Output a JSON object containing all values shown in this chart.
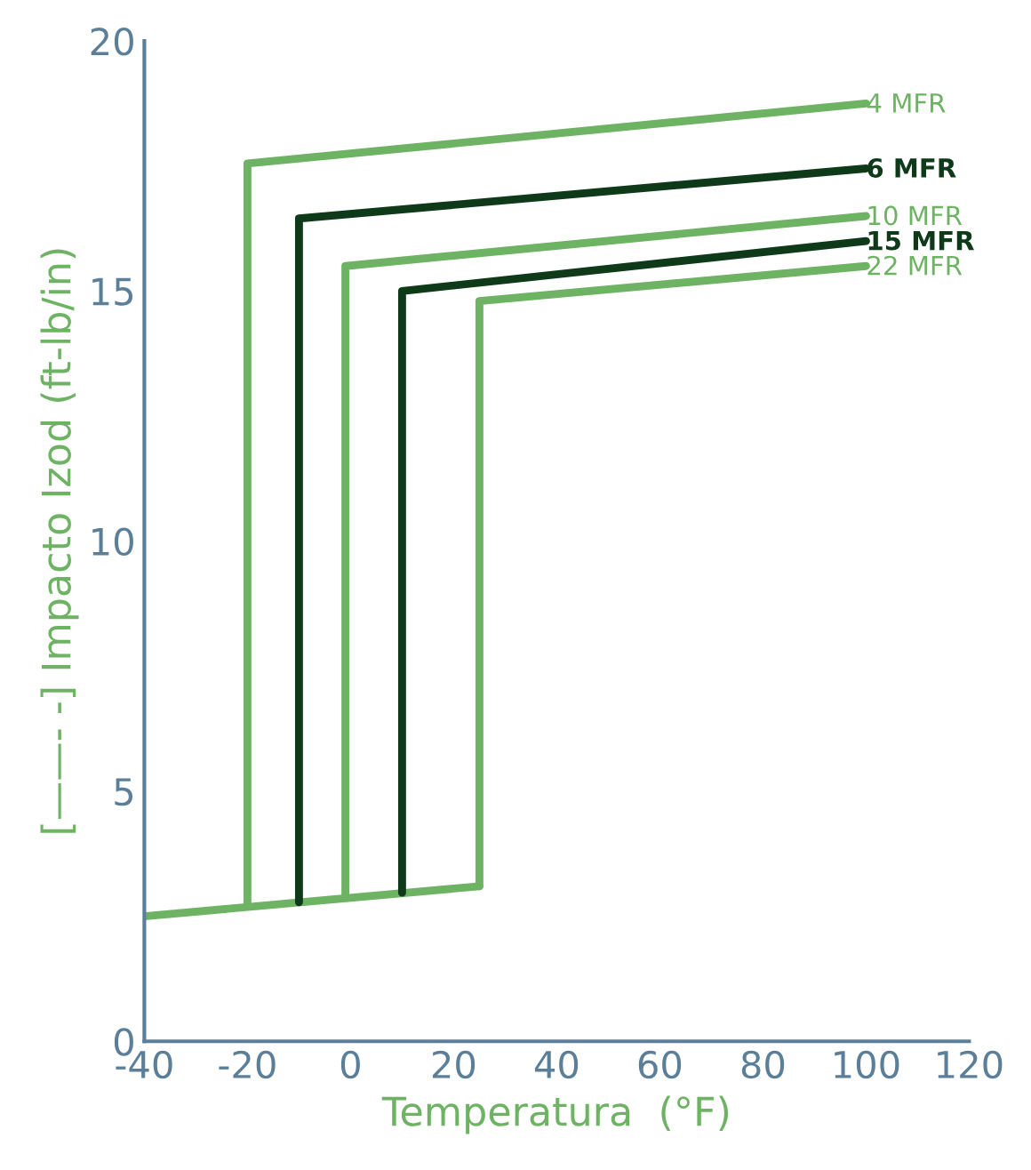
{
  "chart_data": {
    "type": "line",
    "ylabel": "[——- -] Impacto Izod (ft-lb/in)",
    "xlabel": "Temperatura  (°F)",
    "xlim": [
      -40,
      120
    ],
    "xticks": [
      -40,
      -20,
      0,
      20,
      40,
      60,
      80,
      100,
      120
    ],
    "ylim": [
      0,
      20
    ],
    "yticks": [
      0,
      5,
      10,
      15,
      20
    ],
    "grid": false,
    "legend": false,
    "marker": "none",
    "line_style": "solid",
    "series": [
      {
        "color": "#6db363",
        "x": [
          -40,
          25
        ],
        "values": [
          2.5,
          3.1
        ]
      },
      {
        "name": "4 MFR",
        "color": "#6db363",
        "x": [
          -20,
          -20,
          100
        ],
        "values": [
          2.7,
          17.55,
          18.75
        ]
      },
      {
        "name": "6 MFR",
        "color": "#0f3a1a",
        "x": [
          -10,
          -10,
          100
        ],
        "values": [
          2.78,
          16.45,
          17.45
        ]
      },
      {
        "name": "10 MFR",
        "color": "#6db363",
        "x": [
          -1,
          -1,
          100
        ],
        "values": [
          2.88,
          15.5,
          16.5
        ]
      },
      {
        "name": "15 MFR",
        "color": "#0f3a1a",
        "x": [
          10,
          10,
          100
        ],
        "values": [
          2.97,
          15.0,
          16.0
        ]
      },
      {
        "name": "22 MFR",
        "color": "#6db363",
        "x": [
          25,
          25,
          100
        ],
        "values": [
          3.1,
          14.8,
          15.5
        ]
      }
    ]
  }
}
